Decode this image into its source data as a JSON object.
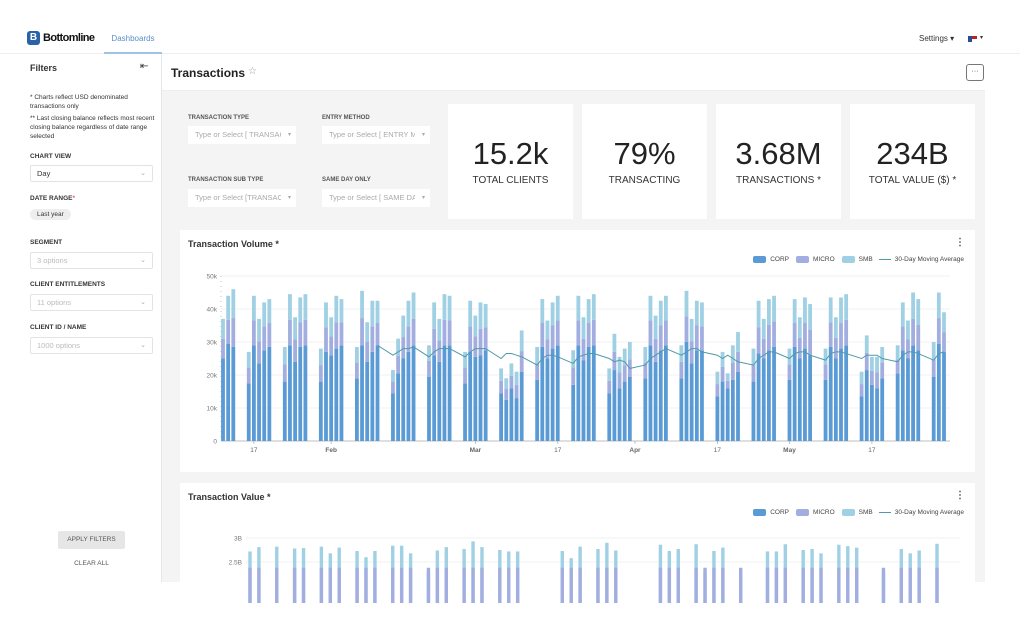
{
  "header": {
    "brand": "Bottomline",
    "brand_mark": "B",
    "tab": "Dashboards",
    "settings": "Settings ▾",
    "flag_caret": "▾"
  },
  "sidebar": {
    "title": "Filters",
    "collapse_icon": "⇤",
    "note1": "* Charts reflect USD denominated transactions only",
    "note2": "** Last closing balance reflects most recent closing balance regardless of date range selected",
    "chart_view": {
      "label": "CHART VIEW",
      "value": "Day"
    },
    "date_range": {
      "label": "DATE RANGE",
      "required": "*",
      "value": "Last year"
    },
    "segment": {
      "label": "SEGMENT",
      "placeholder": "3 options"
    },
    "entitlements": {
      "label": "CLIENT ENTITLEMENTS",
      "placeholder": "11 options"
    },
    "client": {
      "label": "CLIENT ID / NAME",
      "placeholder": "1000 options"
    },
    "apply": "APPLY FILTERS",
    "clear": "CLEAR ALL"
  },
  "page": {
    "title": "Transactions",
    "more": "···"
  },
  "filters": [
    {
      "label": "TRANSACTION TYPE",
      "placeholder": "Type or Select [ TRANSACTION TYPE ]"
    },
    {
      "label": "ENTRY METHOD",
      "placeholder": "Type or Select [ ENTRY METHOD ]"
    },
    {
      "label": "TRANSACTION SUB TYPE",
      "placeholder": "Type or Select [TRANSACTION SUB TYPE]"
    },
    {
      "label": "SAME DAY ONLY",
      "placeholder": "Type or Select [ SAME DAY ONLY ]"
    }
  ],
  "kpis": [
    {
      "value": "15.2k",
      "label": "TOTAL CLIENTS"
    },
    {
      "value": "79%",
      "label": "TRANSACTING"
    },
    {
      "value": "3.68M",
      "label": "TRANSACTIONS *"
    },
    {
      "value": "234B",
      "label": "TOTAL VALUE ($) *"
    }
  ],
  "colors": {
    "CORP": "#5b9bd5",
    "MICRO": "#a3aee0",
    "SMB": "#9fd0e3",
    "MA": "#4f9aa8"
  },
  "chart_data": [
    {
      "type": "bar",
      "stacked": true,
      "title": "Transaction Volume *",
      "legend": [
        "CORP",
        "MICRO",
        "SMB",
        "30-Day Moving Average"
      ],
      "legend_position": "top-right",
      "y_ticks": [
        "0",
        "10k",
        "20k",
        "30k",
        "40k",
        "50k"
      ],
      "ylim": [
        0,
        50000
      ],
      "grid": true,
      "x_ticks": [
        "17",
        "Feb",
        "Mar",
        "17",
        "Apr",
        "17",
        "May",
        "17"
      ],
      "weeks": [
        {
          "corp": [
            25,
            29.5,
            28.5
          ],
          "micro": [
            6,
            7.25,
            8.75
          ],
          "smb": [
            6,
            7.25,
            8.75
          ],
          "ma": [
            null,
            null,
            null
          ]
        },
        {
          "corp": [
            17.5,
            29,
            23.5,
            27.5,
            28.5
          ],
          "micro": [
            4.75,
            7.5,
            6.75,
            7.25,
            7.25
          ],
          "smb": [
            4.75,
            7.5,
            6.75,
            7.25,
            7.25
          ],
          "ma": [
            null,
            null,
            null,
            null,
            null
          ]
        },
        {
          "corp": [
            18,
            29,
            24,
            28.5,
            29
          ],
          "micro": [
            5.25,
            7.75,
            6.75,
            7.5,
            7.75
          ],
          "smb": [
            5.25,
            7.75,
            6.75,
            7.5,
            7.75
          ],
          "ma": [
            null,
            null,
            null,
            null,
            null
          ]
        },
        {
          "corp": [
            18,
            27,
            26,
            28,
            29
          ],
          "micro": [
            5,
            7.5,
            5.75,
            8,
            7
          ],
          "smb": [
            5,
            7.5,
            5.75,
            8,
            7
          ],
          "ma": [
            null,
            null,
            null,
            null,
            null
          ]
        },
        {
          "corp": [
            19,
            29,
            24,
            27,
            29
          ],
          "micro": [
            4.75,
            8.25,
            6,
            7.75,
            6.75
          ],
          "smb": [
            4.75,
            8.25,
            6,
            7.75,
            6.75
          ],
          "ma": [
            null,
            null,
            null,
            null,
            29
          ]
        },
        {
          "corp": [
            14.5,
            20.5,
            25,
            27,
            29
          ],
          "micro": [
            3.5,
            5.25,
            6.5,
            7.75,
            8
          ],
          "smb": [
            3.5,
            5.25,
            6.5,
            7.75,
            8
          ],
          "ma": [
            26,
            27,
            28,
            28,
            28.5
          ]
        },
        {
          "corp": [
            19.5,
            26,
            24,
            29,
            29
          ],
          "micro": [
            4.75,
            8,
            6.5,
            7.75,
            7.5
          ],
          "smb": [
            4.75,
            8,
            6.5,
            7.75,
            7.5
          ],
          "ma": [
            25.5,
            27,
            28,
            28,
            28
          ]
        },
        {
          "corp": [
            17.5,
            27,
            25.5,
            26,
            27.5
          ],
          "micro": [
            4.75,
            7.75,
            6.25,
            8,
            7
          ],
          "smb": [
            4.75,
            7.75,
            6.25,
            8,
            7
          ],
          "ma": [
            25.5,
            27,
            28,
            28,
            28
          ]
        },
        {
          "corp": [
            14.5,
            12.5,
            16,
            13,
            21
          ],
          "micro": [
            3.75,
            3.25,
            3.75,
            4,
            6.25
          ],
          "smb": [
            3.75,
            3.25,
            3.75,
            4,
            6.25
          ],
          "ma": [
            25,
            26.5,
            26.5,
            26,
            25.5
          ]
        },
        {
          "corp": [
            18.5,
            28.5,
            25,
            28,
            29
          ],
          "micro": [
            5,
            7.25,
            5.75,
            7,
            7.5
          ],
          "smb": [
            5,
            7.25,
            5.75,
            7,
            7.5
          ],
          "ma": [
            23,
            25,
            26,
            26,
            25.5
          ]
        },
        {
          "corp": [
            17,
            29,
            24.5,
            28.5,
            29
          ],
          "micro": [
            5.25,
            7.5,
            6.5,
            7.25,
            7.75
          ],
          "smb": [
            5.25,
            7.5,
            6.5,
            7.25,
            7.75
          ],
          "ma": [
            23.5,
            25.5,
            26,
            26.5,
            26.5
          ]
        },
        {
          "corp": [
            14.5,
            21.5,
            16,
            18,
            19.5
          ],
          "micro": [
            3.75,
            5.5,
            4.75,
            5,
            5.25
          ],
          "smb": [
            3.75,
            5.5,
            4.75,
            5,
            5.25
          ],
          "ma": [
            25,
            24,
            24.5,
            24,
            22
          ]
        },
        {
          "corp": [
            19,
            29,
            24,
            27.5,
            29
          ],
          "micro": [
            4.75,
            7.5,
            7,
            7.5,
            7.5
          ],
          "smb": [
            4.75,
            7.5,
            7,
            7.5,
            7.5
          ],
          "ma": [
            23,
            25,
            26,
            27,
            28
          ]
        },
        {
          "corp": [
            19,
            30,
            23.5,
            27.5,
            27.5
          ],
          "micro": [
            5,
            7.75,
            6.75,
            7.5,
            7.25
          ],
          "smb": [
            5,
            7.75,
            6.75,
            7.5,
            7.25
          ],
          "ma": [
            26,
            27,
            28,
            28,
            27
          ]
        },
        {
          "corp": [
            13.5,
            18,
            16,
            18.5,
            21
          ],
          "micro": [
            3.75,
            4.5,
            2.25,
            5.25,
            6
          ],
          "smb": [
            3.75,
            4.5,
            2.25,
            5.25,
            6
          ],
          "ma": [
            26,
            25,
            26,
            25,
            24
          ]
        },
        {
          "corp": [
            18,
            26.5,
            25,
            27.5,
            28.5
          ],
          "micro": [
            5,
            8,
            6,
            7.75,
            7.75
          ],
          "smb": [
            5,
            8,
            6,
            7.75,
            7.75
          ],
          "ma": [
            23,
            25,
            26,
            27,
            27
          ]
        },
        {
          "corp": [
            18.5,
            28.5,
            25,
            28,
            26
          ],
          "micro": [
            4.75,
            7.25,
            6.25,
            7.75,
            7.75
          ],
          "smb": [
            4.75,
            7.25,
            6.25,
            7.75,
            7.75
          ],
          "ma": [
            25,
            26.5,
            27,
            27,
            26
          ]
        },
        {
          "corp": [
            18.5,
            28.5,
            25,
            28,
            29
          ],
          "micro": [
            4.75,
            7.5,
            6.25,
            7.75,
            7.75
          ],
          "smb": [
            4.75,
            7.5,
            6.25,
            7.75,
            7.75
          ],
          "ma": [
            24.5,
            26.5,
            27,
            27,
            26.5
          ]
        },
        {
          "corp": [
            13.5,
            21.5,
            17,
            16,
            19
          ],
          "micro": [
            3.75,
            5.25,
            4.25,
            4.75,
            4.75
          ],
          "smb": [
            3.75,
            5.25,
            4.25,
            4.75,
            4.75
          ],
          "ma": [
            25,
            26,
            26,
            26,
            25
          ]
        },
        {
          "corp": [
            20.5,
            27.5,
            25,
            29,
            27.5
          ],
          "micro": [
            4.25,
            7.25,
            5.75,
            8,
            7.75
          ],
          "smb": [
            4.25,
            7.25,
            5.75,
            8,
            7.75
          ],
          "ma": [
            24,
            26,
            27,
            27,
            26.5
          ]
        },
        {
          "corp": [
            19.5,
            29.5,
            27
          ],
          "micro": [
            5.25,
            7.75,
            6
          ],
          "smb": [
            5.25,
            7.75,
            6
          ],
          "ma": [
            24.5,
            26.5,
            27
          ]
        }
      ]
    },
    {
      "type": "bar",
      "stacked": true,
      "title": "Transaction Value *",
      "legend": [
        "CORP",
        "MICRO",
        "SMB",
        "30-Day Moving Average"
      ],
      "legend_position": "top-right",
      "y_ticks": [
        "2.5B",
        "3B"
      ],
      "grid": true,
      "totals_B": [
        2.72,
        2.81,
        null,
        2.82,
        null,
        2.78,
        2.79,
        null,
        2.82,
        2.68,
        2.8,
        null,
        2.73,
        2.6,
        2.73,
        null,
        2.84,
        2.84,
        2.68,
        null,
        2.3,
        2.74,
        2.81,
        null,
        2.77,
        2.93,
        2.81,
        null,
        2.75,
        2.72,
        2.72,
        null,
        null,
        null,
        null,
        2.73,
        2.58,
        2.82,
        null,
        2.77,
        2.9,
        2.74,
        null,
        null,
        null,
        null,
        2.86,
        2.73,
        2.77,
        null,
        2.87,
        2.28,
        2.73,
        2.8,
        null,
        2.25,
        null,
        null,
        2.72,
        2.72,
        2.87,
        null,
        2.75,
        2.77,
        2.68,
        null,
        2.86,
        2.83,
        2.8,
        null,
        null,
        2.3,
        null,
        2.77,
        2.68,
        2.74,
        null,
        2.88
      ]
    }
  ]
}
